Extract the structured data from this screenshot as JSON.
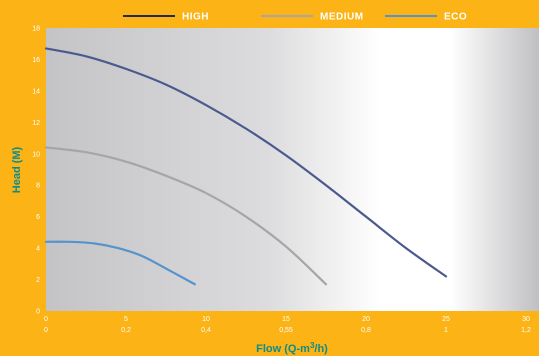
{
  "chart_data": {
    "type": "line",
    "xlabel": "Flow (Q-m",
    "xlabel_sup": "3",
    "xlabel_end": "/h)",
    "ylabel": "Head (M)",
    "xlim": [
      0,
      30
    ],
    "ylim": [
      0,
      18
    ],
    "x_ticks": [
      0,
      5,
      10,
      15,
      20,
      25,
      30
    ],
    "x_ticks_secondary": [
      "0",
      "0,2",
      "0,4",
      "0,55",
      "0,8",
      "1",
      "1,2"
    ],
    "y_ticks": [
      0,
      2,
      4,
      6,
      8,
      10,
      12,
      14,
      16,
      18
    ],
    "legend_position": "top",
    "series": [
      {
        "name": "HIGH",
        "color": "#4a5a8e",
        "points": [
          [
            0,
            16.7
          ],
          [
            2.5,
            16.2
          ],
          [
            5,
            15.4
          ],
          [
            7.5,
            14.4
          ],
          [
            10,
            13.1
          ],
          [
            12.5,
            11.6
          ],
          [
            15,
            9.9
          ],
          [
            17.5,
            8.0
          ],
          [
            20,
            6.0
          ],
          [
            22.5,
            4.0
          ],
          [
            25,
            2.2
          ]
        ]
      },
      {
        "name": "MEDIUM",
        "color": "#a6a6a6",
        "points": [
          [
            0,
            10.4
          ],
          [
            2.5,
            10.1
          ],
          [
            5,
            9.5
          ],
          [
            7.5,
            8.6
          ],
          [
            10,
            7.5
          ],
          [
            12.5,
            6.0
          ],
          [
            15,
            4.1
          ],
          [
            17.5,
            1.7
          ]
        ]
      },
      {
        "name": "ECO",
        "color": "#5593cd",
        "points": [
          [
            0,
            4.4
          ],
          [
            1.5,
            4.4
          ],
          [
            3,
            4.3
          ],
          [
            4.5,
            4.0
          ],
          [
            6,
            3.5
          ],
          [
            7.5,
            2.7
          ],
          [
            9.3,
            1.7
          ]
        ]
      }
    ]
  }
}
